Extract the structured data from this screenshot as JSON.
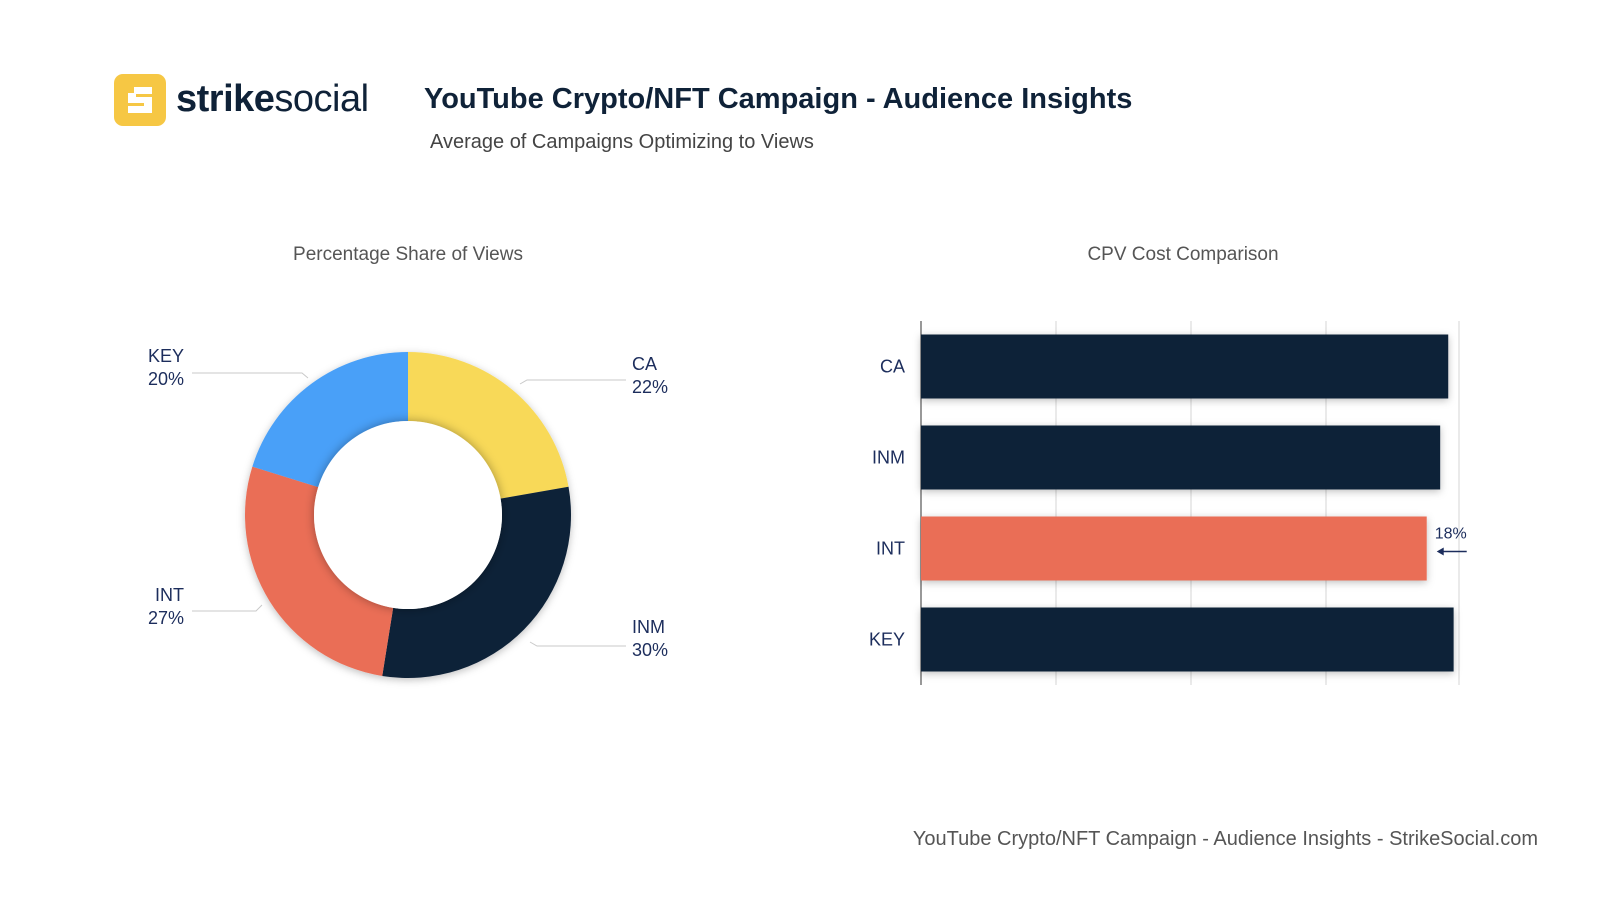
{
  "brand": {
    "name_bold": "strike",
    "name_light": "social",
    "logo_icon": "strike-social-s-logo-icon",
    "accent_color": "#f6c744",
    "navy_color": "#0f2238"
  },
  "header": {
    "title": "YouTube Crypto/NFT Campaign - Audience Insights",
    "subtitle": "Average of Campaigns Optimizing to Views"
  },
  "footer": {
    "text": "YouTube Crypto/NFT Campaign - Audience Insights - StrikeSocial.com"
  },
  "chart_data": [
    {
      "type": "pie",
      "variant": "donut",
      "title": "Percentage Share of Views",
      "labels": [
        "CA",
        "INM",
        "INT",
        "KEY"
      ],
      "values": [
        22,
        30,
        27,
        20
      ],
      "value_labels": [
        "22%",
        "30%",
        "27%",
        "20%"
      ],
      "colors": [
        "#f8d958",
        "#0f2238",
        "#ea6e57",
        "#4aa0f8"
      ]
    },
    {
      "type": "bar",
      "orientation": "horizontal",
      "title": "CPV Cost Comparison",
      "categories": [
        "CA",
        "INM",
        "INT",
        "KEY"
      ],
      "values": [
        0.98,
        0.965,
        0.94,
        0.99
      ],
      "xlim": [
        0,
        1
      ],
      "colors": [
        "#0f2238",
        "#0f2238",
        "#ea6e57",
        "#0f2238"
      ],
      "grid": true,
      "annotation": {
        "category": "INT",
        "text": "18%",
        "arrow": "left"
      }
    }
  ]
}
